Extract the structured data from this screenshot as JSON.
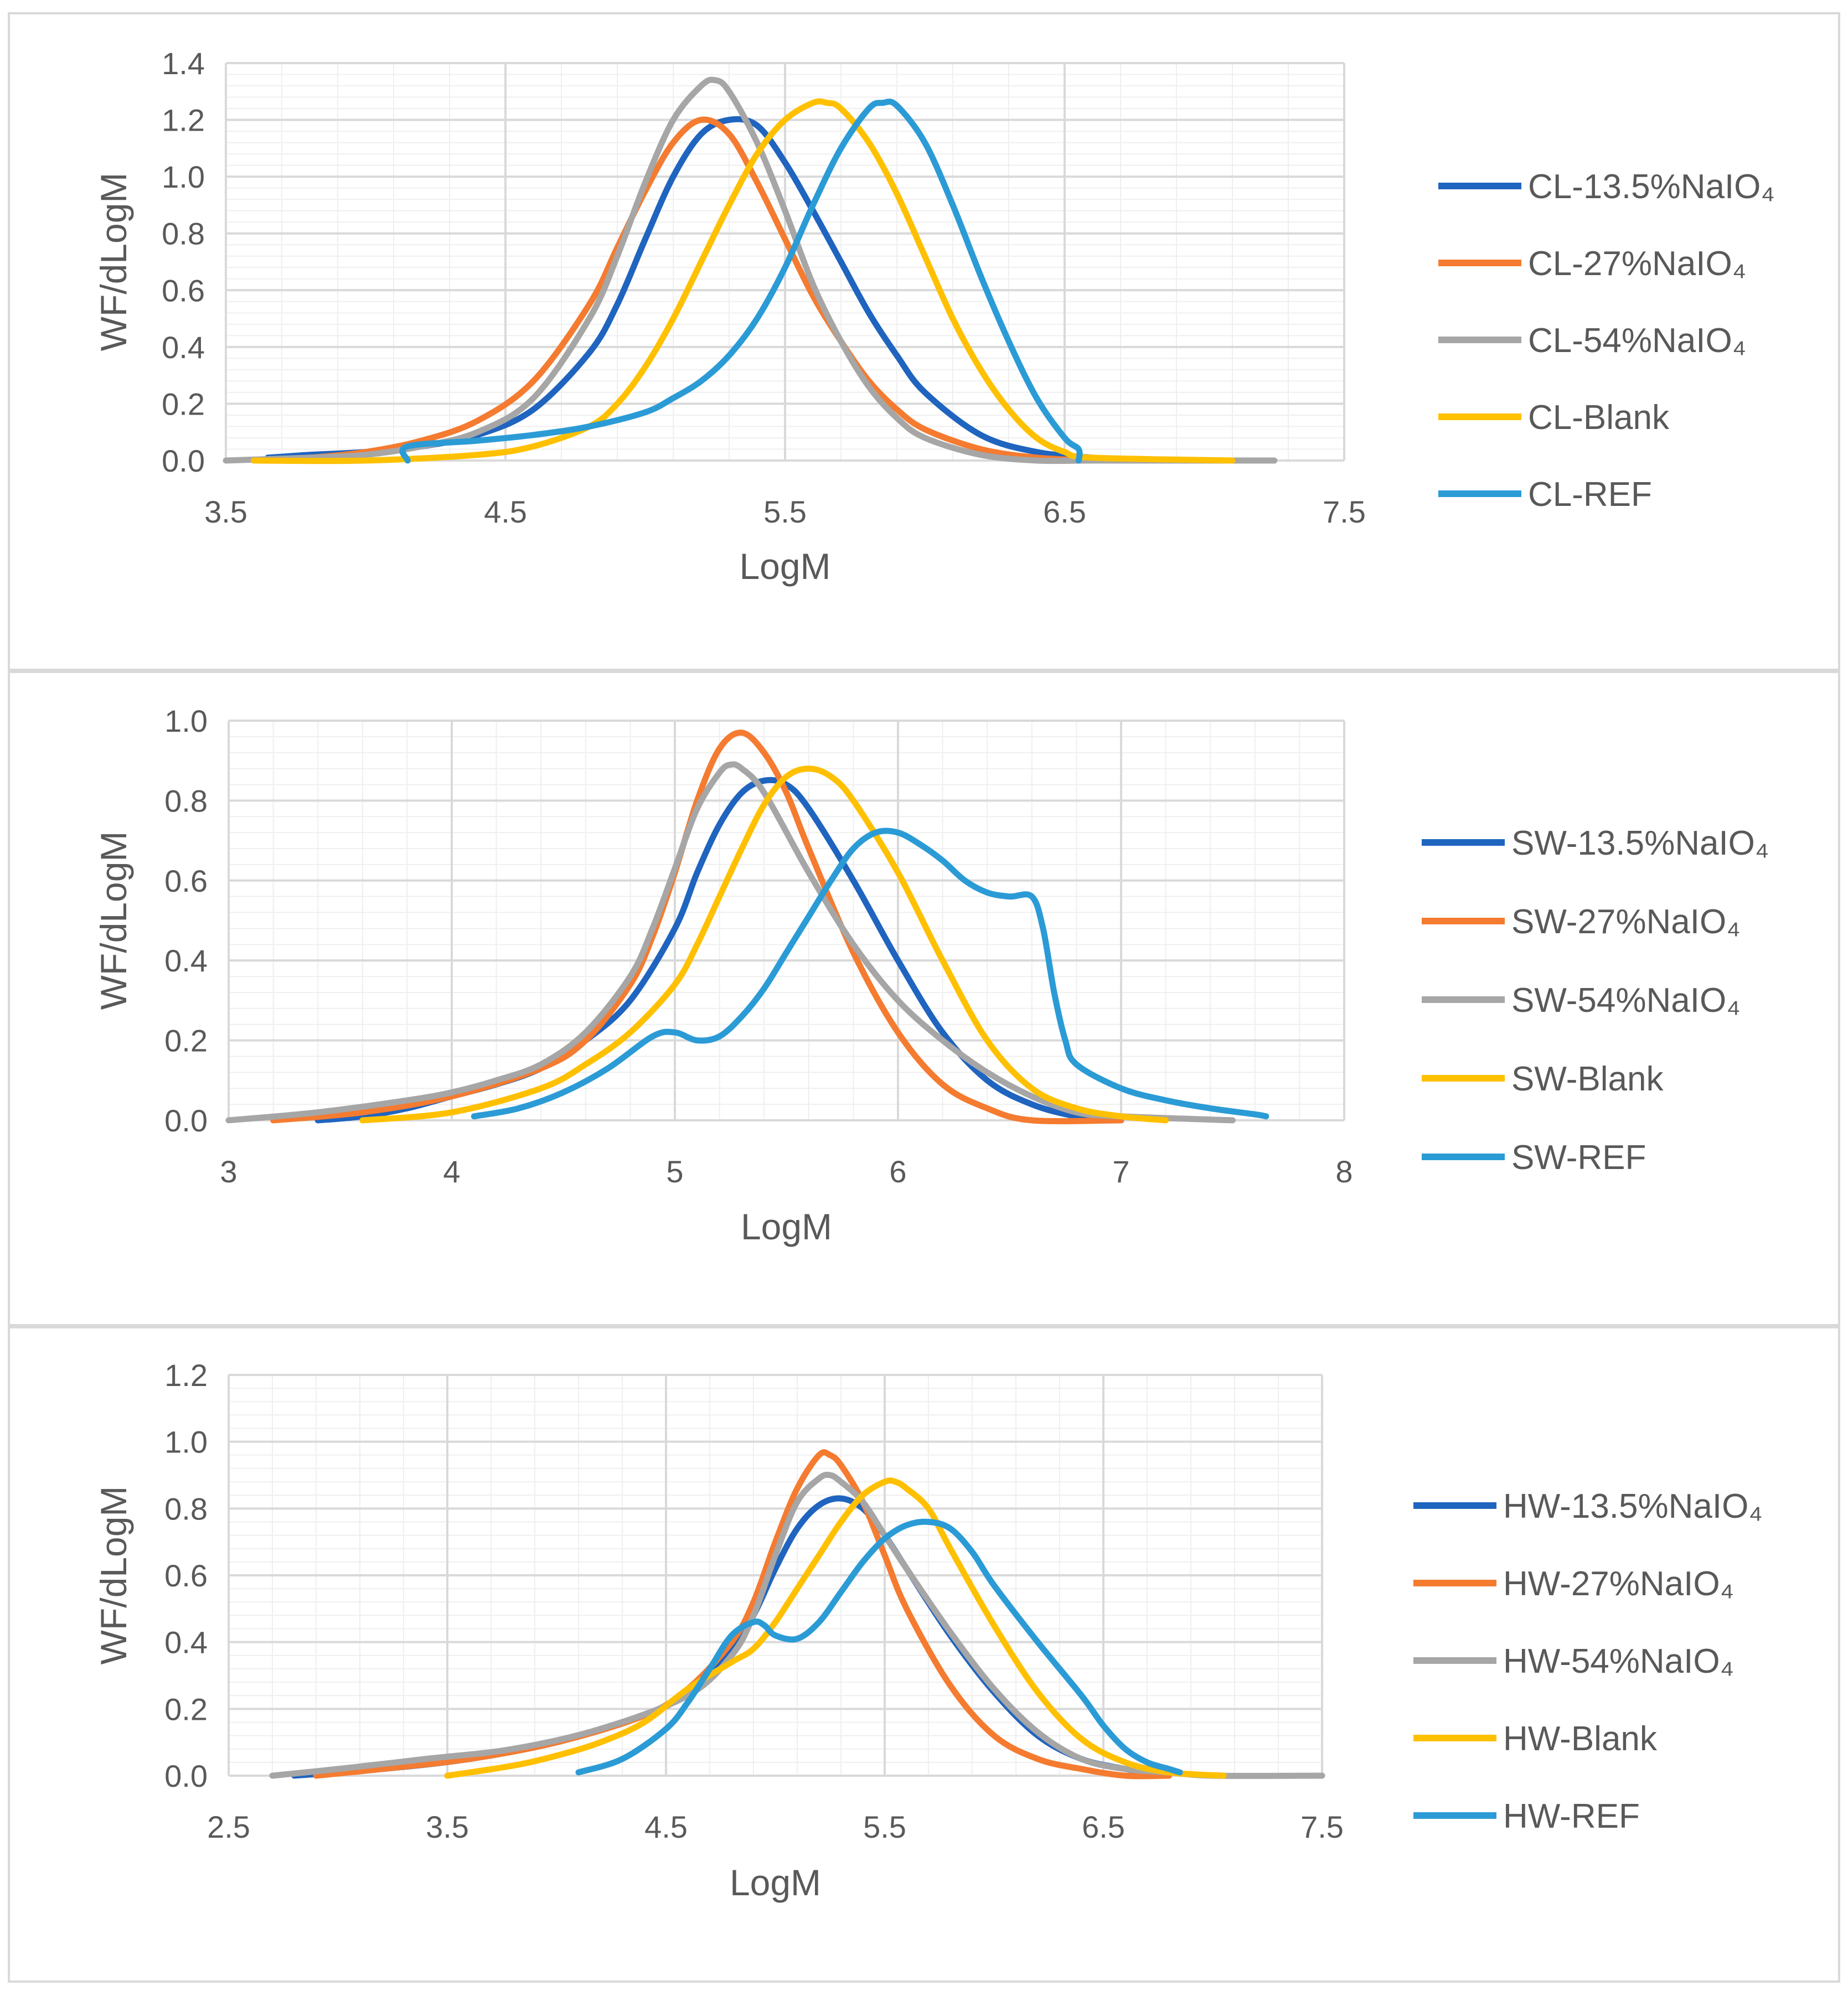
{
  "chart_data": [
    {
      "type": "line",
      "xlabel": "LogM",
      "ylabel": "WF/dLogM",
      "xlim": [
        3.5,
        7.5
      ],
      "ylim": [
        0,
        1.4
      ],
      "xticks": [
        "3.5",
        "4.5",
        "5.5",
        "6.5",
        "7.5"
      ],
      "yticks": [
        "0.0",
        "0.2",
        "0.4",
        "0.6",
        "0.8",
        "1.0",
        "1.2",
        "1.4"
      ],
      "grid": true,
      "legend": "right",
      "series": [
        {
          "name": "CL-13.5%NaIO₄",
          "color": "#1f64bf",
          "x": [
            3.65,
            3.8,
            4.0,
            4.2,
            4.4,
            4.6,
            4.8,
            4.9,
            5.0,
            5.1,
            5.2,
            5.3,
            5.4,
            5.5,
            5.6,
            5.7,
            5.8,
            5.9,
            6.0,
            6.2,
            6.4,
            6.6
          ],
          "y": [
            0.01,
            0.02,
            0.03,
            0.05,
            0.09,
            0.18,
            0.38,
            0.55,
            0.78,
            1.0,
            1.15,
            1.2,
            1.18,
            1.05,
            0.88,
            0.7,
            0.52,
            0.37,
            0.24,
            0.09,
            0.03,
            0.01
          ]
        },
        {
          "name": "CL-27%NaIO₄",
          "color": "#f47b30",
          "x": [
            3.6,
            3.8,
            4.0,
            4.2,
            4.4,
            4.6,
            4.8,
            4.9,
            5.0,
            5.1,
            5.2,
            5.3,
            5.4,
            5.5,
            5.6,
            5.7,
            5.8,
            5.9,
            6.0,
            6.2,
            6.4,
            6.6
          ],
          "y": [
            0.0,
            0.01,
            0.03,
            0.07,
            0.14,
            0.28,
            0.55,
            0.75,
            0.95,
            1.12,
            1.2,
            1.15,
            0.98,
            0.78,
            0.58,
            0.42,
            0.28,
            0.18,
            0.11,
            0.04,
            0.01,
            0.0
          ]
        },
        {
          "name": "CL-54%NaIO₄",
          "color": "#a6a6a6",
          "x": [
            3.5,
            3.8,
            4.0,
            4.2,
            4.4,
            4.6,
            4.8,
            4.9,
            5.0,
            5.1,
            5.2,
            5.25,
            5.3,
            5.4,
            5.5,
            5.6,
            5.7,
            5.8,
            5.9,
            6.0,
            6.2,
            6.4,
            6.6,
            7.0,
            7.25
          ],
          "y": [
            0.0,
            0.01,
            0.02,
            0.05,
            0.1,
            0.22,
            0.5,
            0.72,
            0.98,
            1.2,
            1.32,
            1.34,
            1.3,
            1.12,
            0.88,
            0.62,
            0.42,
            0.26,
            0.15,
            0.08,
            0.02,
            0.0,
            0.0,
            0.0,
            0.0
          ]
        },
        {
          "name": "CL-Blank",
          "color": "#ffc000",
          "x": [
            3.6,
            4.0,
            4.4,
            4.6,
            4.8,
            4.9,
            5.0,
            5.1,
            5.2,
            5.3,
            5.4,
            5.5,
            5.6,
            5.65,
            5.7,
            5.8,
            5.9,
            6.0,
            6.1,
            6.2,
            6.3,
            6.4,
            6.5,
            6.6,
            7.1
          ],
          "y": [
            0.0,
            0.0,
            0.02,
            0.05,
            0.12,
            0.2,
            0.33,
            0.5,
            0.7,
            0.9,
            1.08,
            1.2,
            1.26,
            1.26,
            1.24,
            1.12,
            0.94,
            0.72,
            0.5,
            0.32,
            0.18,
            0.08,
            0.03,
            0.01,
            0.0
          ]
        },
        {
          "name": "CL-REF",
          "color": "#2b9bd6",
          "x": [
            4.15,
            4.15,
            4.4,
            4.6,
            4.8,
            5.0,
            5.1,
            5.2,
            5.3,
            5.4,
            5.5,
            5.6,
            5.7,
            5.8,
            5.85,
            5.9,
            6.0,
            6.1,
            6.2,
            6.3,
            6.4,
            6.5,
            6.55,
            6.55
          ],
          "y": [
            0.0,
            0.05,
            0.07,
            0.09,
            0.12,
            0.17,
            0.22,
            0.28,
            0.37,
            0.5,
            0.68,
            0.9,
            1.1,
            1.24,
            1.26,
            1.25,
            1.12,
            0.9,
            0.65,
            0.42,
            0.22,
            0.08,
            0.04,
            0.0
          ]
        }
      ]
    },
    {
      "type": "line",
      "xlabel": "LogM",
      "ylabel": "WF/dLogM",
      "xlim": [
        3,
        8
      ],
      "ylim": [
        0,
        1.0
      ],
      "xticks": [
        "3",
        "4",
        "5",
        "6",
        "7",
        "8"
      ],
      "yticks": [
        "0.0",
        "0.2",
        "0.4",
        "0.6",
        "0.8",
        "1.0"
      ],
      "grid": true,
      "legend": "right",
      "series": [
        {
          "name": "SW-13.5%NaIO₄",
          "color": "#1f64bf",
          "x": [
            3.4,
            3.6,
            3.8,
            4.0,
            4.2,
            4.4,
            4.6,
            4.8,
            5.0,
            5.1,
            5.2,
            5.3,
            5.4,
            5.5,
            5.6,
            5.8,
            6.0,
            6.2,
            6.4,
            6.6,
            6.8,
            7.0
          ],
          "y": [
            0.0,
            0.01,
            0.03,
            0.06,
            0.09,
            0.13,
            0.2,
            0.3,
            0.48,
            0.62,
            0.74,
            0.82,
            0.85,
            0.84,
            0.78,
            0.6,
            0.4,
            0.22,
            0.1,
            0.04,
            0.01,
            0.0
          ]
        },
        {
          "name": "SW-27%NaIO₄",
          "color": "#f47b30",
          "x": [
            3.2,
            3.6,
            4.0,
            4.4,
            4.6,
            4.8,
            4.9,
            5.0,
            5.1,
            5.2,
            5.3,
            5.4,
            5.5,
            5.6,
            5.8,
            6.0,
            6.2,
            6.4,
            6.6,
            7.0
          ],
          "y": [
            0.0,
            0.02,
            0.06,
            0.13,
            0.2,
            0.34,
            0.46,
            0.62,
            0.8,
            0.93,
            0.97,
            0.92,
            0.82,
            0.68,
            0.42,
            0.22,
            0.09,
            0.03,
            0.0,
            0.0
          ]
        },
        {
          "name": "SW-54%NaIO₄",
          "color": "#a6a6a6",
          "x": [
            3.0,
            3.4,
            3.8,
            4.0,
            4.2,
            4.4,
            4.6,
            4.8,
            4.9,
            5.0,
            5.1,
            5.2,
            5.25,
            5.3,
            5.4,
            5.6,
            5.8,
            6.0,
            6.2,
            6.4,
            6.6,
            6.8,
            7.0,
            7.5
          ],
          "y": [
            0.0,
            0.02,
            0.05,
            0.07,
            0.1,
            0.14,
            0.22,
            0.36,
            0.48,
            0.63,
            0.78,
            0.87,
            0.89,
            0.88,
            0.82,
            0.62,
            0.44,
            0.3,
            0.2,
            0.12,
            0.06,
            0.02,
            0.01,
            0.0
          ]
        },
        {
          "name": "SW-Blank",
          "color": "#ffc000",
          "x": [
            3.6,
            4.0,
            4.4,
            4.6,
            4.8,
            5.0,
            5.1,
            5.2,
            5.3,
            5.4,
            5.5,
            5.6,
            5.7,
            5.8,
            6.0,
            6.2,
            6.4,
            6.6,
            6.8,
            7.0,
            7.2
          ],
          "y": [
            0.0,
            0.02,
            0.08,
            0.14,
            0.22,
            0.34,
            0.44,
            0.56,
            0.68,
            0.79,
            0.86,
            0.88,
            0.86,
            0.8,
            0.62,
            0.4,
            0.2,
            0.08,
            0.03,
            0.01,
            0.0
          ]
        },
        {
          "name": "SW-REF",
          "color": "#2b9bd6",
          "x": [
            4.1,
            4.3,
            4.5,
            4.7,
            4.9,
            5.0,
            5.1,
            5.2,
            5.3,
            5.4,
            5.5,
            5.6,
            5.7,
            5.8,
            5.9,
            6.0,
            6.1,
            6.2,
            6.3,
            6.4,
            6.5,
            6.6,
            6.65,
            6.7,
            6.75,
            6.8,
            7.0,
            7.2,
            7.4,
            7.6,
            7.65
          ],
          "y": [
            0.01,
            0.03,
            0.07,
            0.13,
            0.21,
            0.22,
            0.2,
            0.21,
            0.26,
            0.33,
            0.42,
            0.51,
            0.6,
            0.68,
            0.72,
            0.72,
            0.69,
            0.65,
            0.6,
            0.57,
            0.56,
            0.56,
            0.48,
            0.32,
            0.2,
            0.14,
            0.08,
            0.05,
            0.03,
            0.015,
            0.01
          ]
        }
      ]
    },
    {
      "type": "line",
      "xlabel": "LogM",
      "ylabel": "WF/dLogM",
      "xlim": [
        2.5,
        7.5
      ],
      "ylim": [
        0,
        1.2
      ],
      "xticks": [
        "2.5",
        "3.5",
        "4.5",
        "5.5",
        "6.5",
        "7.5"
      ],
      "yticks": [
        "0.0",
        "0.2",
        "0.4",
        "0.6",
        "0.8",
        "1.0",
        "1.2"
      ],
      "grid": true,
      "legend": "right",
      "series": [
        {
          "name": "HW-13.5%NaIO₄",
          "color": "#1f64bf",
          "x": [
            2.8,
            3.2,
            3.6,
            4.0,
            4.4,
            4.6,
            4.8,
            4.9,
            5.0,
            5.1,
            5.2,
            5.3,
            5.4,
            5.5,
            5.6,
            5.8,
            6.0,
            6.2,
            6.4,
            6.6,
            6.8
          ],
          "y": [
            0.0,
            0.02,
            0.05,
            0.1,
            0.18,
            0.25,
            0.38,
            0.48,
            0.62,
            0.74,
            0.81,
            0.83,
            0.8,
            0.72,
            0.62,
            0.42,
            0.25,
            0.12,
            0.05,
            0.02,
            0.0
          ]
        },
        {
          "name": "HW-27%NaIO₄",
          "color": "#f47b30",
          "x": [
            2.9,
            3.2,
            3.6,
            4.0,
            4.4,
            4.6,
            4.8,
            4.9,
            5.0,
            5.1,
            5.2,
            5.25,
            5.3,
            5.4,
            5.5,
            5.6,
            5.8,
            6.0,
            6.2,
            6.4,
            6.6,
            6.8
          ],
          "y": [
            0.0,
            0.02,
            0.05,
            0.1,
            0.18,
            0.26,
            0.4,
            0.52,
            0.7,
            0.86,
            0.96,
            0.96,
            0.93,
            0.82,
            0.66,
            0.5,
            0.27,
            0.12,
            0.05,
            0.02,
            0.0,
            0.0
          ]
        },
        {
          "name": "HW-54%NaIO₄",
          "color": "#a6a6a6",
          "x": [
            2.7,
            3.0,
            3.4,
            3.8,
            4.2,
            4.6,
            4.8,
            4.9,
            5.0,
            5.1,
            5.2,
            5.25,
            5.3,
            5.4,
            5.5,
            5.6,
            5.8,
            6.0,
            6.2,
            6.4,
            6.6,
            6.8,
            7.0,
            7.5
          ],
          "y": [
            0.0,
            0.02,
            0.05,
            0.08,
            0.14,
            0.24,
            0.36,
            0.48,
            0.66,
            0.82,
            0.89,
            0.9,
            0.88,
            0.82,
            0.72,
            0.62,
            0.43,
            0.26,
            0.13,
            0.05,
            0.02,
            0.01,
            0.0,
            0.0
          ]
        },
        {
          "name": "HW-Blank",
          "color": "#ffc000",
          "x": [
            3.5,
            3.8,
            4.0,
            4.2,
            4.4,
            4.6,
            4.8,
            4.9,
            5.0,
            5.1,
            5.2,
            5.3,
            5.4,
            5.5,
            5.55,
            5.6,
            5.7,
            5.8,
            6.0,
            6.2,
            6.4,
            6.6,
            6.8,
            7.05
          ],
          "y": [
            0.0,
            0.03,
            0.06,
            0.1,
            0.16,
            0.26,
            0.34,
            0.38,
            0.46,
            0.56,
            0.66,
            0.76,
            0.84,
            0.88,
            0.88,
            0.86,
            0.8,
            0.68,
            0.45,
            0.25,
            0.11,
            0.04,
            0.01,
            0.0
          ]
        },
        {
          "name": "HW-REF",
          "color": "#2b9bd6",
          "x": [
            4.1,
            4.3,
            4.5,
            4.6,
            4.7,
            4.8,
            4.9,
            4.95,
            5.0,
            5.1,
            5.2,
            5.3,
            5.4,
            5.5,
            5.6,
            5.7,
            5.8,
            5.9,
            6.0,
            6.2,
            6.4,
            6.5,
            6.6,
            6.7,
            6.8,
            6.85
          ],
          "y": [
            0.01,
            0.05,
            0.14,
            0.22,
            0.32,
            0.42,
            0.46,
            0.45,
            0.42,
            0.41,
            0.46,
            0.55,
            0.64,
            0.71,
            0.75,
            0.76,
            0.74,
            0.67,
            0.57,
            0.4,
            0.24,
            0.15,
            0.08,
            0.04,
            0.02,
            0.01
          ]
        }
      ]
    }
  ]
}
